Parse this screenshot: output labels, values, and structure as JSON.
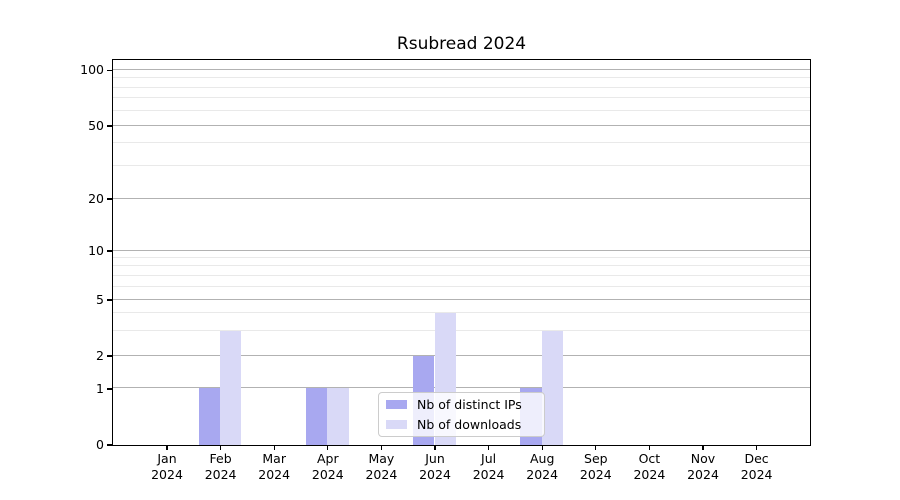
{
  "chart_data": {
    "type": "bar",
    "title": "Rsubread 2024",
    "categories": [
      {
        "month": "Jan",
        "year": "2024"
      },
      {
        "month": "Feb",
        "year": "2024"
      },
      {
        "month": "Mar",
        "year": "2024"
      },
      {
        "month": "Apr",
        "year": "2024"
      },
      {
        "month": "May",
        "year": "2024"
      },
      {
        "month": "Jun",
        "year": "2024"
      },
      {
        "month": "Jul",
        "year": "2024"
      },
      {
        "month": "Aug",
        "year": "2024"
      },
      {
        "month": "Sep",
        "year": "2024"
      },
      {
        "month": "Oct",
        "year": "2024"
      },
      {
        "month": "Nov",
        "year": "2024"
      },
      {
        "month": "Dec",
        "year": "2024"
      }
    ],
    "series": [
      {
        "name": "Nb of distinct IPs",
        "color": "#a8a8f0",
        "values": [
          0,
          1,
          0,
          1,
          0,
          2,
          0,
          1,
          0,
          0,
          0,
          0
        ]
      },
      {
        "name": "Nb of downloads",
        "color": "#d9d9f7",
        "values": [
          0,
          3,
          0,
          1,
          0,
          4,
          0,
          3,
          0,
          0,
          0,
          0
        ]
      }
    ],
    "y_axis": {
      "scale": "log-like",
      "ticks": [
        0,
        1,
        2,
        5,
        10,
        20,
        50,
        100
      ],
      "minor_ticks": [
        3,
        4,
        6,
        7,
        8,
        9,
        30,
        40,
        60,
        70,
        80,
        90
      ],
      "ylim": [
        0,
        110
      ],
      "anchors": {
        "values": [
          0,
          1,
          2,
          5,
          10,
          20,
          50,
          100
        ],
        "fractions": [
          0,
          0.1455,
          0.2312,
          0.3766,
          0.5039,
          0.639,
          0.8286,
          0.9732
        ]
      }
    },
    "x_axis": {
      "tick_label_lines": 2
    },
    "legend": {
      "position": "lower center",
      "border_color": "#cccccc",
      "background": "rgba(255,255,255,0.8)"
    },
    "grid": "both",
    "grid_major_color": "#b2b2b2",
    "grid_minor_color": "#e9e9e9"
  }
}
